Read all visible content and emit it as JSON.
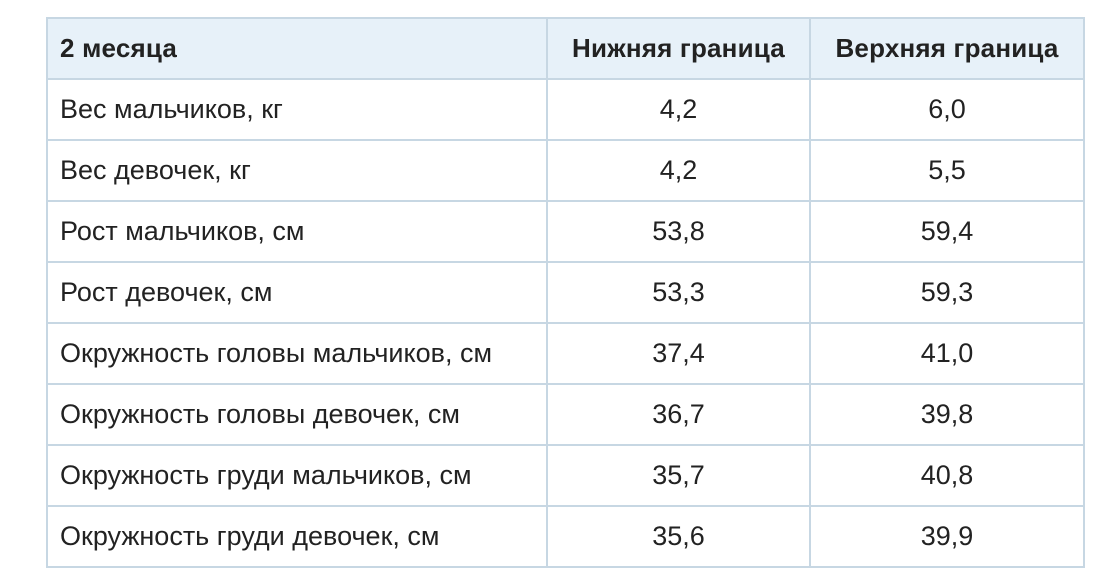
{
  "table": {
    "headers": {
      "param": "2 месяца",
      "lower": "Нижняя граница",
      "upper": "Верхняя граница"
    },
    "rows": [
      {
        "param": "Вес мальчиков, кг",
        "lower": "4,2",
        "upper": "6,0"
      },
      {
        "param": "Вес девочек, кг",
        "lower": "4,2",
        "upper": "5,5"
      },
      {
        "param": "Рост мальчиков, см",
        "lower": "53,8",
        "upper": "59,4"
      },
      {
        "param": "Рост девочек, см",
        "lower": "53,3",
        "upper": "59,3"
      },
      {
        "param": "Окружность головы мальчиков, см",
        "lower": "37,4",
        "upper": "41,0"
      },
      {
        "param": "Окружность головы девочек, см",
        "lower": "36,7",
        "upper": "39,8"
      },
      {
        "param": "Окружность груди мальчиков, см",
        "lower": "35,7",
        "upper": "40,8"
      },
      {
        "param": "Окружность груди девочек, см",
        "lower": "35,6",
        "upper": "39,9"
      }
    ]
  }
}
